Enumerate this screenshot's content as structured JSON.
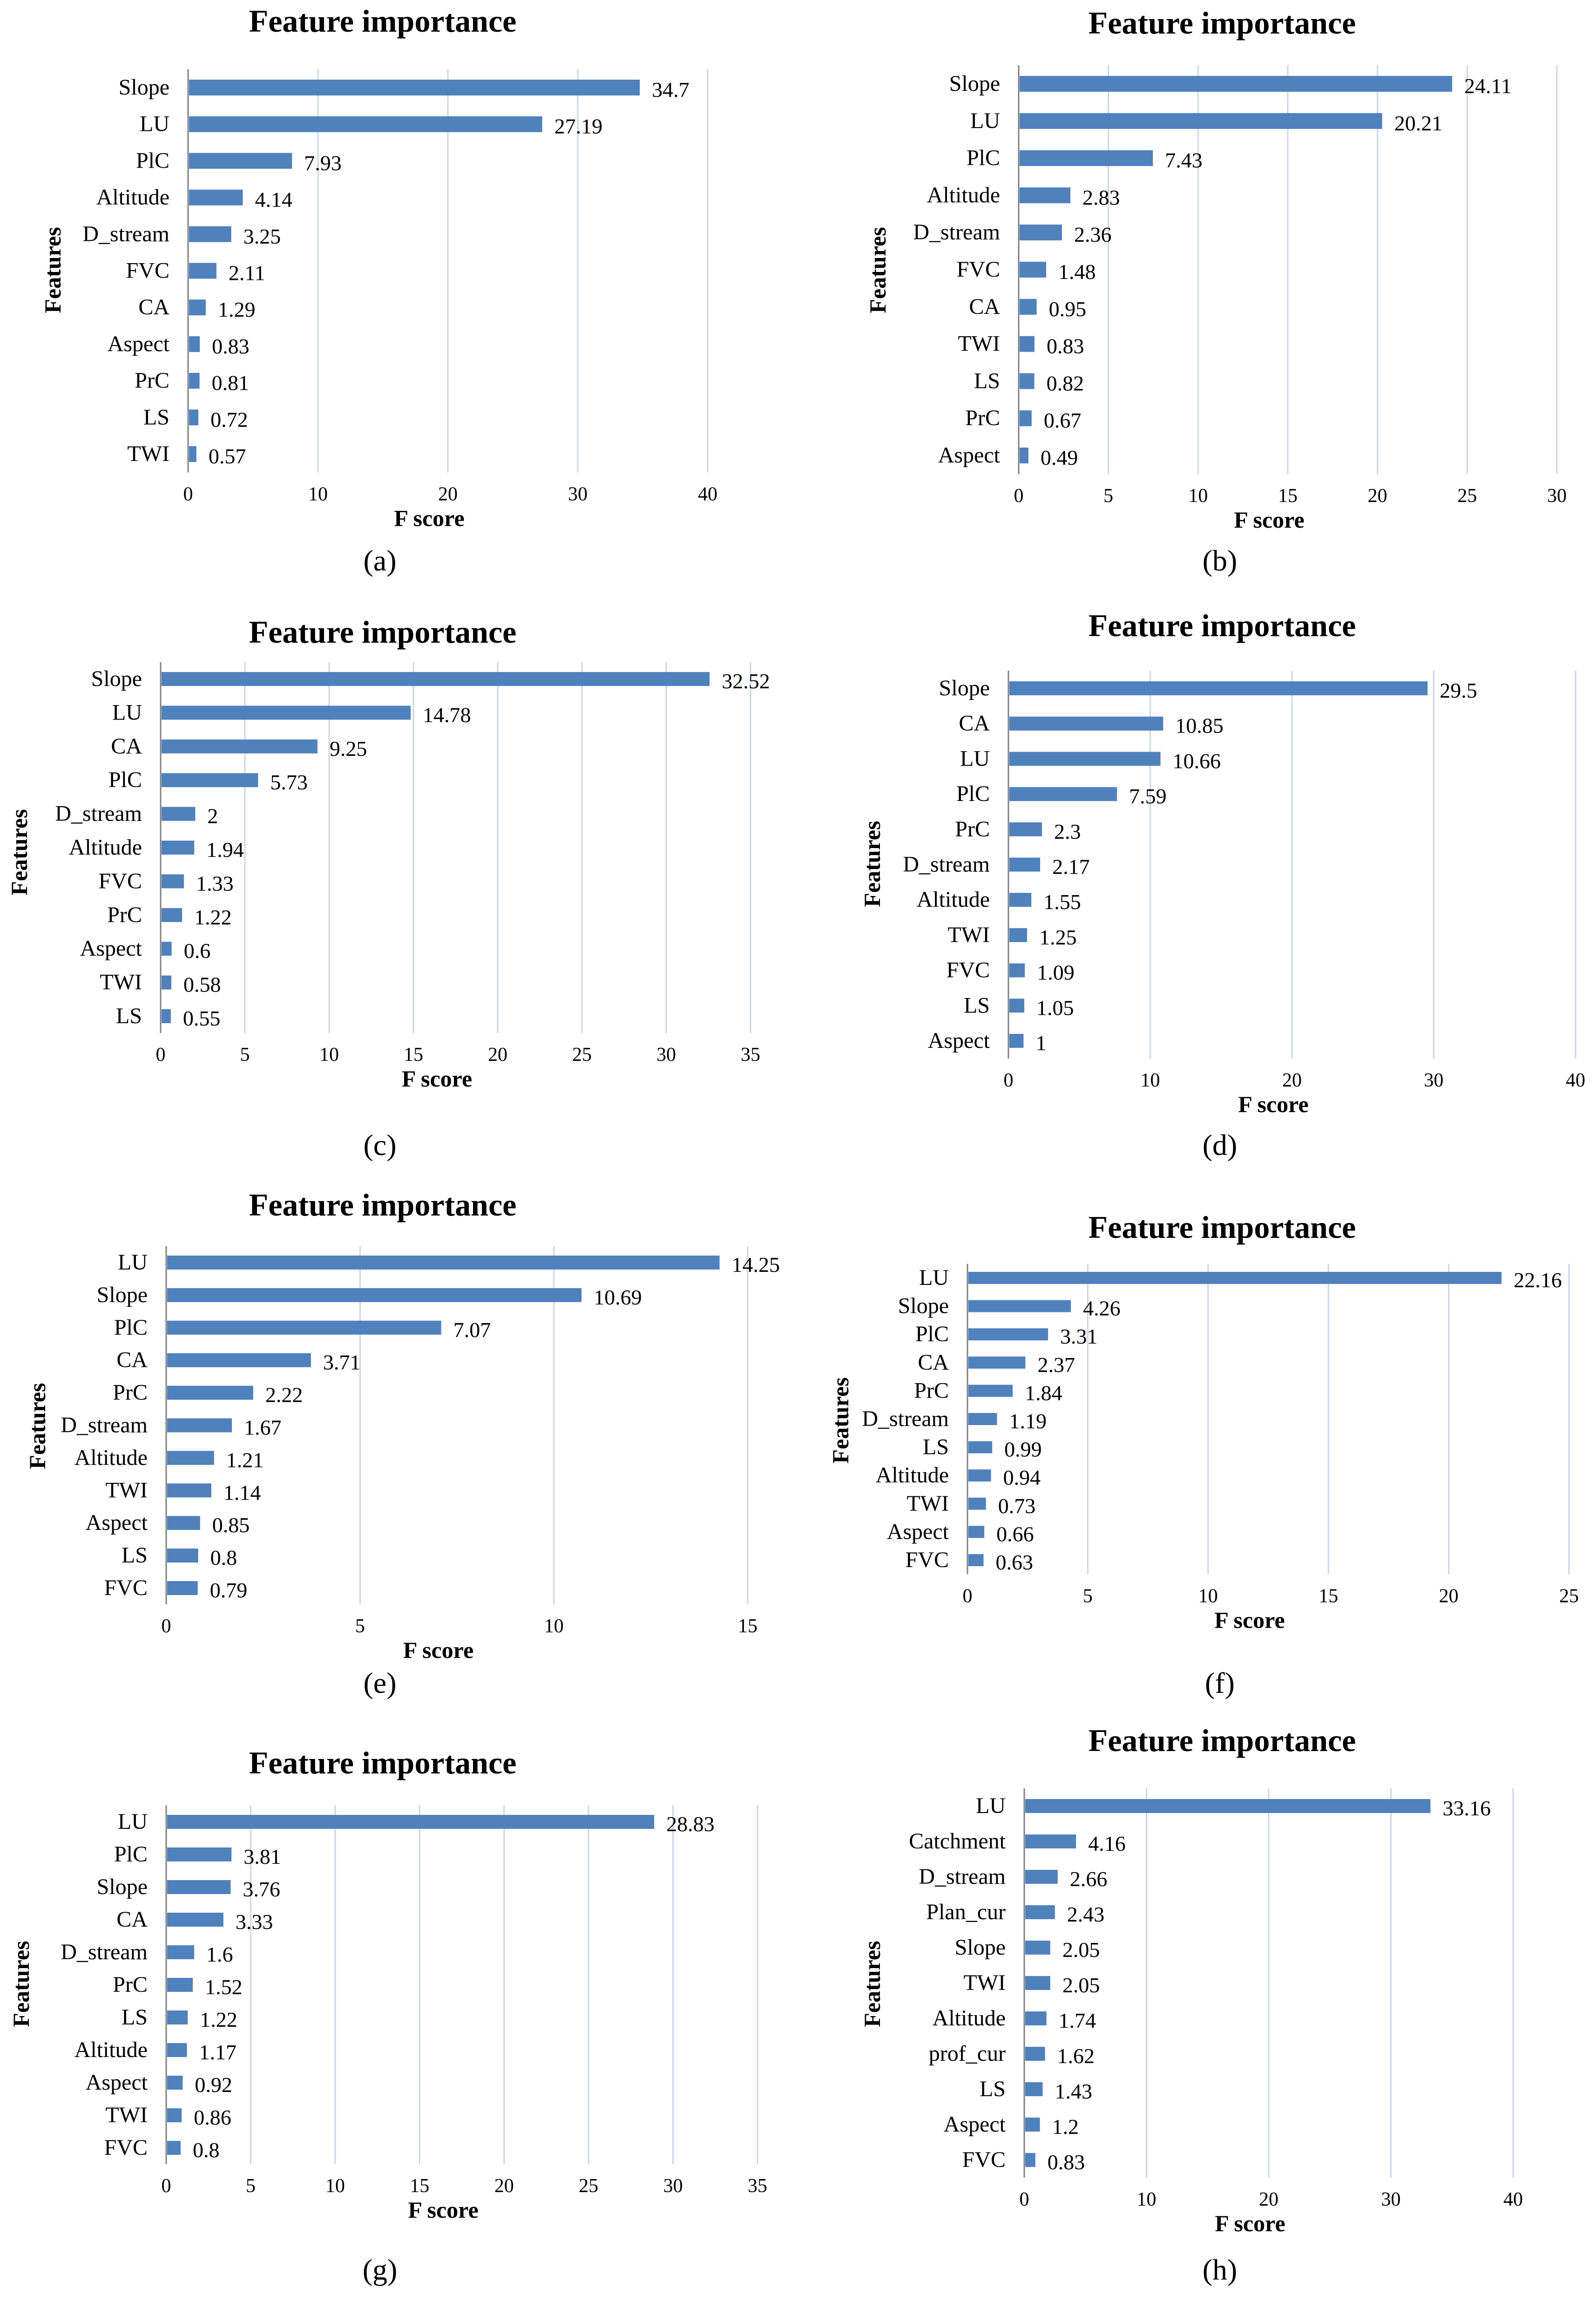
{
  "chart_data": [
    {
      "type": "bar",
      "panel": "(a)",
      "title": "Feature importance",
      "xlabel": "F score",
      "ylabel": "Features",
      "xlim": [
        0,
        40
      ],
      "xticks": [
        0,
        10,
        20,
        30,
        40
      ],
      "categories": [
        "Slope",
        "LU",
        "PlC",
        "Altitude",
        "D_stream",
        "FVC",
        "CA",
        "Aspect",
        "PrC",
        "LS",
        "TWI"
      ],
      "values": [
        34.7,
        27.19,
        7.93,
        4.14,
        3.25,
        2.11,
        1.29,
        0.83,
        0.81,
        0.72,
        0.57
      ]
    },
    {
      "type": "bar",
      "panel": "(b)",
      "title": "Feature importance",
      "xlabel": "F score",
      "ylabel": "Features",
      "xlim": [
        0,
        30
      ],
      "xticks": [
        0,
        5,
        10,
        15,
        20,
        25,
        30
      ],
      "categories": [
        "Slope",
        "LU",
        "PlC",
        "Altitude",
        "D_stream",
        "FVC",
        "CA",
        "TWI",
        "LS",
        "PrC",
        "Aspect"
      ],
      "values": [
        24.11,
        20.21,
        7.43,
        2.83,
        2.36,
        1.48,
        0.95,
        0.83,
        0.82,
        0.67,
        0.49
      ]
    },
    {
      "type": "bar",
      "panel": "(c)",
      "title": "Feature importance",
      "xlabel": "F score",
      "ylabel": "Features",
      "xlim": [
        0,
        35
      ],
      "xticks": [
        0,
        5,
        10,
        15,
        20,
        25,
        30,
        35
      ],
      "categories": [
        "Slope",
        "LU",
        "CA",
        "PlC",
        "D_stream",
        "Altitude",
        "FVC",
        "PrC",
        "Aspect",
        "TWI",
        "LS"
      ],
      "values": [
        32.52,
        14.78,
        9.25,
        5.73,
        2,
        1.94,
        1.33,
        1.22,
        0.6,
        0.58,
        0.55
      ]
    },
    {
      "type": "bar",
      "panel": "(d)",
      "title": "Feature importance",
      "xlabel": "F score",
      "ylabel": "Features",
      "xlim": [
        0,
        40
      ],
      "xticks": [
        0,
        10,
        20,
        30,
        40
      ],
      "categories": [
        "Slope",
        "CA",
        "LU",
        "PlC",
        "PrC",
        "D_stream",
        "Altitude",
        "TWI",
        "FVC",
        "LS",
        "Aspect"
      ],
      "values": [
        29.5,
        10.85,
        10.66,
        7.59,
        2.3,
        2.17,
        1.55,
        1.25,
        1.09,
        1.05,
        1
      ]
    },
    {
      "type": "bar",
      "panel": "(e)",
      "title": "Feature importance",
      "xlabel": "F score",
      "ylabel": "Features",
      "xlim": [
        0,
        15
      ],
      "xticks": [
        0,
        5,
        10,
        15
      ],
      "categories": [
        "LU",
        "Slope",
        "PlC",
        "CA",
        "PrC",
        "D_stream",
        "Altitude",
        "TWI",
        "Aspect",
        "LS",
        "FVC"
      ],
      "values": [
        14.25,
        10.69,
        7.07,
        3.71,
        2.22,
        1.67,
        1.21,
        1.14,
        0.85,
        0.8,
        0.79
      ]
    },
    {
      "type": "bar",
      "panel": "(f)",
      "title": "Feature importance",
      "xlabel": "F score",
      "ylabel": "Features",
      "xlim": [
        0,
        25
      ],
      "xticks": [
        0,
        5,
        10,
        15,
        20,
        25
      ],
      "categories": [
        "LU",
        "Slope",
        "PlC",
        "CA",
        "PrC",
        "D_stream",
        "LS",
        "Altitude",
        "TWI",
        "Aspect",
        "FVC"
      ],
      "values": [
        22.16,
        4.26,
        3.31,
        2.37,
        1.84,
        1.19,
        0.99,
        0.94,
        0.73,
        0.66,
        0.63
      ]
    },
    {
      "type": "bar",
      "panel": "(g)",
      "title": "Feature importance",
      "xlabel": "F score",
      "ylabel": "Features",
      "xlim": [
        0,
        35
      ],
      "xticks": [
        0,
        5,
        10,
        15,
        20,
        25,
        30,
        35
      ],
      "categories": [
        "LU",
        "PlC",
        "Slope",
        "CA",
        "D_stream",
        "PrC",
        "LS",
        "Altitude",
        "Aspect",
        "TWI",
        "FVC"
      ],
      "values": [
        28.83,
        3.81,
        3.76,
        3.33,
        1.6,
        1.52,
        1.22,
        1.17,
        0.92,
        0.86,
        0.8
      ]
    },
    {
      "type": "bar",
      "panel": "(h)",
      "title": "Feature importance",
      "xlabel": "F score",
      "ylabel": "Features",
      "xlim": [
        0,
        40
      ],
      "xticks": [
        0,
        10,
        20,
        30,
        40
      ],
      "categories": [
        "LU",
        "Catchment",
        "D_stream",
        "Plan_cur",
        "Slope",
        "TWI",
        "Altitude",
        "prof_cur",
        "LS",
        "Aspect",
        "FVC"
      ],
      "values": [
        33.16,
        4.16,
        2.66,
        2.43,
        2.05,
        2.05,
        1.74,
        1.62,
        1.43,
        1.2,
        0.83
      ]
    }
  ]
}
